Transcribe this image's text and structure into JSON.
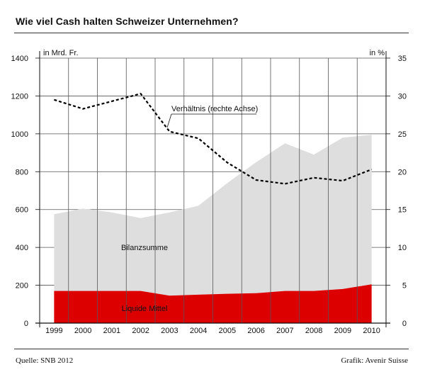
{
  "header": {
    "title": "Wie viel Cash halten Schweizer Unternehmen?"
  },
  "footer": {
    "source": "Quelle: SNB 2012",
    "credit": "Grafik: Avenir Suisse"
  },
  "colors": {
    "area_bilanz": "#dedede",
    "area_liquid": "#dd0000",
    "line": "#000000",
    "grid": "#555555"
  },
  "chart_data": {
    "type": "area",
    "x": [
      "1999",
      "2000",
      "2001",
      "2002",
      "2003",
      "2004",
      "2005",
      "2006",
      "2007",
      "2008",
      "2009",
      "2010"
    ],
    "y_left": {
      "label": "in Mrd. Fr.",
      "ticks": [
        "0",
        "200",
        "400",
        "600",
        "800",
        "1000",
        "1200",
        "1400"
      ],
      "range": [
        0,
        1400
      ]
    },
    "y_right": {
      "label": "in %",
      "ticks": [
        "0",
        "5",
        "10",
        "15",
        "20",
        "25",
        "30",
        "35"
      ],
      "range": [
        0,
        35
      ]
    },
    "series": [
      {
        "name": "Bilanzsumme",
        "axis": "left",
        "kind": "area",
        "values": [
          575,
          605,
          585,
          555,
          585,
          620,
          740,
          850,
          950,
          890,
          980,
          995
        ]
      },
      {
        "name": "Liquide Mittel",
        "axis": "left",
        "kind": "area",
        "values": [
          170,
          170,
          170,
          170,
          145,
          150,
          155,
          158,
          170,
          170,
          180,
          205
        ]
      },
      {
        "name": "Verhältnis (rechte Achse)",
        "axis": "right",
        "kind": "line",
        "style": "dashed",
        "values": [
          29.5,
          28.3,
          29.3,
          30.3,
          25.3,
          24.4,
          21.2,
          18.9,
          18.4,
          19.2,
          18.8,
          20.3
        ]
      }
    ],
    "labels": {
      "bilanz": "Bilanzsumme",
      "liquid": "Liquide Mittel",
      "ratio": "Verhältnis (rechte Achse)"
    },
    "grid": true
  }
}
